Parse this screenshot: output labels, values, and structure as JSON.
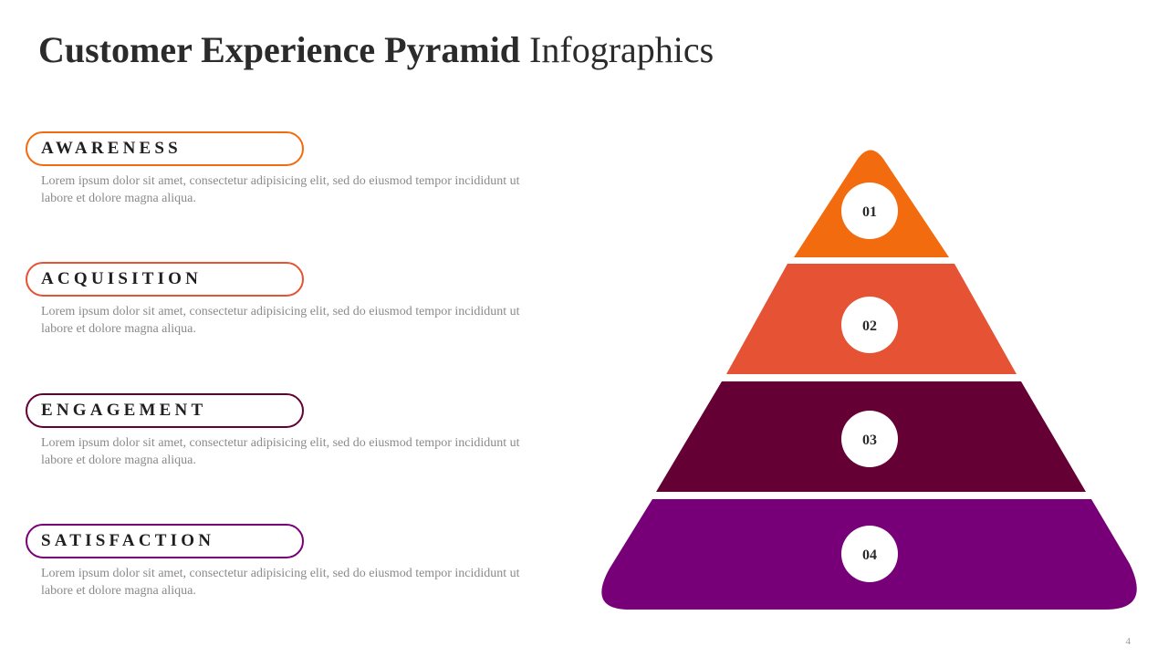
{
  "title": {
    "bold": "Customer Experience Pyramid",
    "regular": "Infographics"
  },
  "stages": [
    {
      "label": "AWARENESS",
      "color": "#f26b0f",
      "number": "01",
      "text": "Lorem ipsum dolor sit amet, consectetur adipisicing elit, sed do eiusmod tempor incididunt ut labore et dolore magna aliqua."
    },
    {
      "label": "ACQUISITION",
      "color": "#e55234",
      "number": "02",
      "text": "Lorem ipsum dolor sit amet, consectetur adipisicing elit, sed do eiusmod tempor incididunt ut labore et dolore magna aliqua."
    },
    {
      "label": "ENGAGEMENT",
      "color": "#640033",
      "number": "03",
      "text": "Lorem ipsum dolor sit amet, consectetur adipisicing elit, sed do eiusmod tempor incididunt ut labore et dolore magna aliqua."
    },
    {
      "label": "SATISFACTION",
      "color": "#770078",
      "number": "04",
      "text": "Lorem ipsum dolor sit amet, consectetur adipisicing elit, sed do eiusmod tempor incididunt ut labore et dolore magna aliqua."
    }
  ],
  "page_number": "4"
}
